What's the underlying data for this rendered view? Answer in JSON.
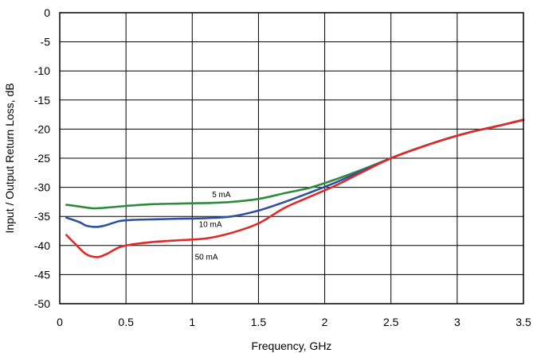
{
  "chart_data": {
    "type": "line",
    "title": "",
    "xlabel": "Frequency, GHz",
    "ylabel": "Input / Output Return Loss, dB",
    "xlim": [
      0,
      3.5
    ],
    "ylim": [
      -50,
      0
    ],
    "x_ticks": [
      0,
      0.5,
      1,
      1.5,
      2,
      2.5,
      3,
      3.5
    ],
    "x_tick_labels": [
      "0",
      "0.5",
      "1",
      "1.5",
      "2",
      "2.5",
      "3",
      "3.5"
    ],
    "y_ticks": [
      0,
      -5,
      -10,
      -15,
      -20,
      -25,
      -30,
      -35,
      -40,
      -45,
      -50
    ],
    "y_tick_labels": [
      "0",
      "-5",
      "-10",
      "-15",
      "-20",
      "-25",
      "-30",
      "-35",
      "-40",
      "-45",
      "-50"
    ],
    "grid": true,
    "series": [
      {
        "name": "5 mA",
        "color": "#2e8b3e",
        "label_at": [
          1.15,
          -31.7
        ],
        "x": [
          0.05,
          0.15,
          0.25,
          0.35,
          0.5,
          0.7,
          0.9,
          1.1,
          1.3,
          1.5,
          1.7,
          1.9,
          2.1,
          2.3,
          2.5,
          2.7,
          2.9,
          3.1,
          3.3,
          3.5
        ],
        "y": [
          -33,
          -33.3,
          -33.6,
          -33.5,
          -33.2,
          -32.9,
          -32.8,
          -32.7,
          -32.5,
          -32.0,
          -31.0,
          -30.0,
          -28.5,
          -26.8,
          -25.0,
          -23.3,
          -21.8,
          -20.5,
          -19.5,
          -18.4
        ]
      },
      {
        "name": "10 mA",
        "color": "#2e4fa2",
        "label_at": [
          1.05,
          -36.8
        ],
        "x": [
          0.05,
          0.15,
          0.2,
          0.28,
          0.35,
          0.45,
          0.55,
          0.7,
          0.9,
          1.1,
          1.3,
          1.5,
          1.7,
          1.9,
          2.1,
          2.3,
          2.5,
          2.7,
          2.9,
          3.1,
          3.3,
          3.5
        ],
        "y": [
          -35.2,
          -36.0,
          -36.6,
          -36.8,
          -36.5,
          -35.8,
          -35.6,
          -35.5,
          -35.4,
          -35.3,
          -35.0,
          -34.0,
          -32.5,
          -30.8,
          -29.0,
          -27.0,
          -25.0,
          -23.3,
          -21.8,
          -20.5,
          -19.5,
          -18.4
        ]
      },
      {
        "name": "50 mA",
        "color": "#e02a2a",
        "label_at": [
          1.02,
          -42.4
        ],
        "x": [
          0.05,
          0.12,
          0.2,
          0.28,
          0.35,
          0.45,
          0.55,
          0.7,
          0.9,
          1.1,
          1.3,
          1.5,
          1.7,
          1.9,
          2.1,
          2.3,
          2.5,
          2.7,
          2.9,
          3.1,
          3.3,
          3.5
        ],
        "y": [
          -38.2,
          -39.8,
          -41.5,
          -42.0,
          -41.5,
          -40.3,
          -39.8,
          -39.4,
          -39.1,
          -38.8,
          -37.8,
          -36.2,
          -33.5,
          -31.5,
          -29.5,
          -27.2,
          -25.0,
          -23.3,
          -21.8,
          -20.5,
          -19.5,
          -18.4
        ]
      }
    ]
  }
}
